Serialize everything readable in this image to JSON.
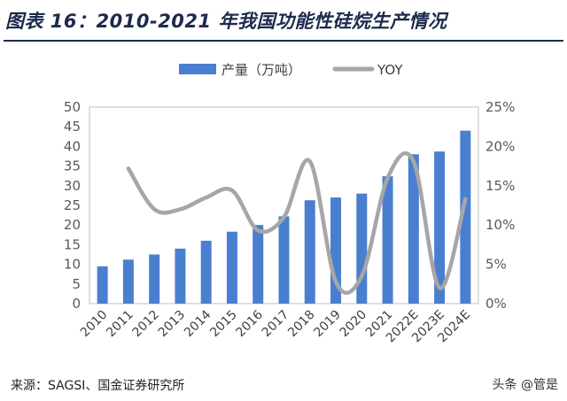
{
  "title": "图表 16：2010-2021 年我国功能性硅烷生产情况",
  "source": "来源：SAGSI、国金证券研究所",
  "watermark": "头条 @管是",
  "colors": {
    "bar": "#4a7fd0",
    "line": "#a6a6a6",
    "title": "#1c2a4e",
    "axis": "#7f7f7f"
  },
  "chart_data": {
    "type": "bar",
    "categories": [
      "2010",
      "2011",
      "2012",
      "2013",
      "2014",
      "2015",
      "2016",
      "2017",
      "2018",
      "2019",
      "2020",
      "2021",
      "2022E",
      "2023E",
      "2024E"
    ],
    "series": [
      {
        "name": "产量（万吨）",
        "type": "bar",
        "axis": "left",
        "values": [
          9.5,
          11.2,
          12.5,
          14.0,
          16.0,
          18.3,
          20.0,
          22.2,
          26.3,
          27.0,
          28.0,
          32.4,
          38.0,
          38.7,
          44.0
        ]
      },
      {
        "name": "YOY",
        "type": "line",
        "axis": "right",
        "values": [
          null,
          17.2,
          12.0,
          12.0,
          13.5,
          14.4,
          9.3,
          11.0,
          18.1,
          2.8,
          3.5,
          16.0,
          18.1,
          2.0,
          13.3
        ]
      }
    ],
    "left_axis": {
      "min": 0,
      "max": 50,
      "ticks": [
        "0",
        "5",
        "10",
        "15",
        "20",
        "25",
        "30",
        "35",
        "40",
        "45",
        "50"
      ]
    },
    "right_axis": {
      "min": 0,
      "max": 25,
      "ticks": [
        "0%",
        "5%",
        "10%",
        "15%",
        "20%",
        "25%"
      ]
    },
    "legend": [
      "产量（万吨）",
      "YOY"
    ],
    "legend_position": "top-center",
    "grid": false
  }
}
